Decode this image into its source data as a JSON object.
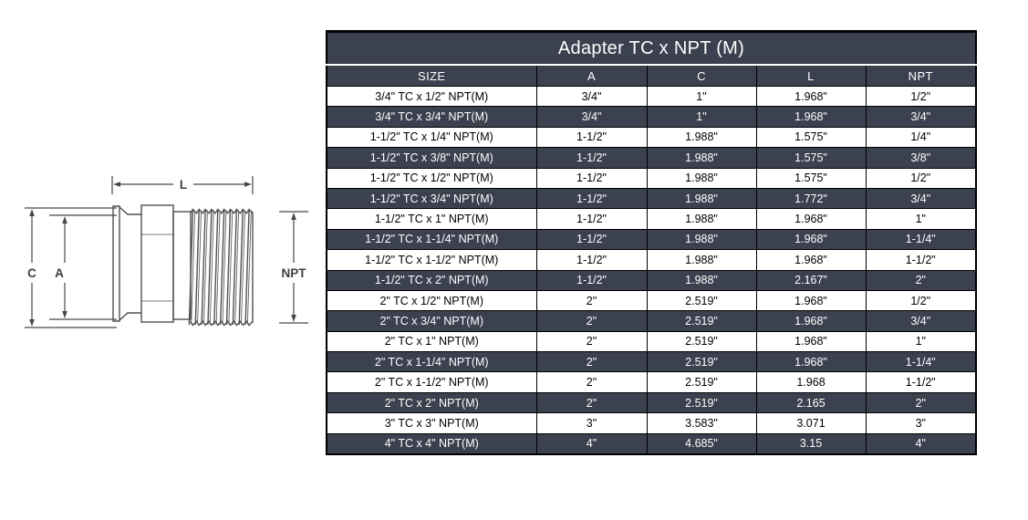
{
  "table": {
    "title": "Adapter TC x NPT (M)",
    "columns": [
      "SIZE",
      "A",
      "C",
      "L",
      "NPT"
    ],
    "rows": [
      [
        "3/4\" TC x 1/2\" NPT(M)",
        "3/4\"",
        "1\"",
        "1.968\"",
        "1/2\""
      ],
      [
        "3/4\" TC x 3/4\" NPT(M)",
        "3/4\"",
        "1\"",
        "1.968\"",
        "3/4\""
      ],
      [
        "1-1/2\" TC x 1/4\" NPT(M)",
        "1-1/2\"",
        "1.988\"",
        "1.575\"",
        "1/4\""
      ],
      [
        "1-1/2\" TC x 3/8\" NPT(M)",
        "1-1/2\"",
        "1.988\"",
        "1.575\"",
        "3/8\""
      ],
      [
        "1-1/2\" TC x 1/2\" NPT(M)",
        "1-1/2\"",
        "1.988\"",
        "1.575\"",
        "1/2\""
      ],
      [
        "1-1/2\" TC x 3/4\" NPT(M)",
        "1-1/2\"",
        "1.988\"",
        "1.772\"",
        "3/4\""
      ],
      [
        "1-1/2\" TC x 1\" NPT(M)",
        "1-1/2\"",
        "1.988\"",
        "1.968\"",
        "1\""
      ],
      [
        "1-1/2\" TC x 1-1/4\" NPT(M)",
        "1-1/2\"",
        "1.988\"",
        "1.968\"",
        "1-1/4\""
      ],
      [
        "1-1/2\" TC x 1-1/2\" NPT(M)",
        "1-1/2\"",
        "1.988\"",
        "1.968\"",
        "1-1/2\""
      ],
      [
        "1-1/2\" TC x 2\" NPT(M)",
        "1-1/2\"",
        "1.988\"",
        "2.167\"",
        "2\""
      ],
      [
        "2\" TC x 1/2\" NPT(M)",
        "2\"",
        "2.519\"",
        "1.968\"",
        "1/2\""
      ],
      [
        "2\" TC x 3/4\" NPT(M)",
        "2\"",
        "2.519\"",
        "1.968\"",
        "3/4\""
      ],
      [
        "2\" TC x 1\" NPT(M)",
        "2\"",
        "2.519\"",
        "1.968\"",
        "1\""
      ],
      [
        "2\" TC x 1-1/4\" NPT(M)",
        "2\"",
        "2.519\"",
        "1.968\"",
        "1-1/4\""
      ],
      [
        "2\" TC x 1-1/2\" NPT(M)",
        "2\"",
        "2.519\"",
        "1.968",
        "1-1/2\""
      ],
      [
        "2\" TC x 2\" NPT(M)",
        "2\"",
        "2.519\"",
        "2.165",
        "2\""
      ],
      [
        "3\" TC x 3\" NPT(M)",
        "3\"",
        "3.583\"",
        "3.071",
        "3\""
      ],
      [
        "4\" TC x 4\" NPT(M)",
        "4\"",
        "4.685\"",
        "3.15",
        "4\""
      ]
    ]
  },
  "diagram": {
    "labels": {
      "length": "L",
      "clamp_od": "C",
      "tube_id": "A",
      "thread": "NPT"
    }
  },
  "colors": {
    "header_bg": "#3c4150",
    "header_text": "#ffffff",
    "row_bg": "#ffffff",
    "row_alt_bg": "#3c4150",
    "row_text": "#000000",
    "row_alt_text": "#ffffff",
    "table_border": "#000000",
    "drawing_line": "#4f5052",
    "dimension_line": "#474747"
  }
}
